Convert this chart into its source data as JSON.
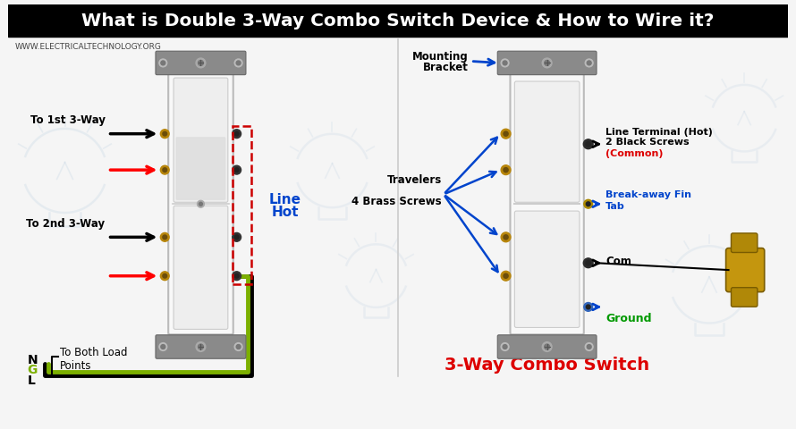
{
  "title": "What is Double 3-Way Combo Switch Device & How to Wire it?",
  "title_bg": "#000000",
  "title_color": "#ffffff",
  "bg_color": "#f5f5f5",
  "watermark": "WWW.ELECTRICALTECHNOLOGY.ORG",
  "left_labels": {
    "to_1st": "To 1st 3-Way",
    "to_2nd": "To 2nd 3-Way",
    "to_both": "To Both Load\nPoints",
    "line_hot_1": "Line",
    "line_hot_2": "Hot"
  },
  "right_labels": {
    "mounting_bracket_1": "Mounting",
    "mounting_bracket_2": "Bracket",
    "travelers_1": "Travelers",
    "travelers_2": "4 Brass Screws",
    "line_terminal_1": "Line Terminal (Hot)",
    "line_terminal_2": "2 Black Screws",
    "common_red": "(Common)",
    "breakaway_1": "Break-away Fin",
    "breakaway_2": "Tab",
    "com": "Com",
    "ground": "Ground",
    "combo_switch": "3-Way Combo Switch"
  },
  "colors": {
    "black": "#000000",
    "red": "#ff0000",
    "blue": "#0044cc",
    "green": "#00aa00",
    "gray": "#888888",
    "light_gray": "#cccccc",
    "white": "#ffffff",
    "gold": "#b8860b",
    "bracket_gray": "#8a8a8a",
    "switch_body": "#f8f8f8",
    "label_blue": "#0044cc",
    "label_red": "#dd0000",
    "label_green": "#009900",
    "dashed_red": "#cc0000",
    "wire_green": "#7cb000",
    "bulb_color": "#b0c8de"
  }
}
